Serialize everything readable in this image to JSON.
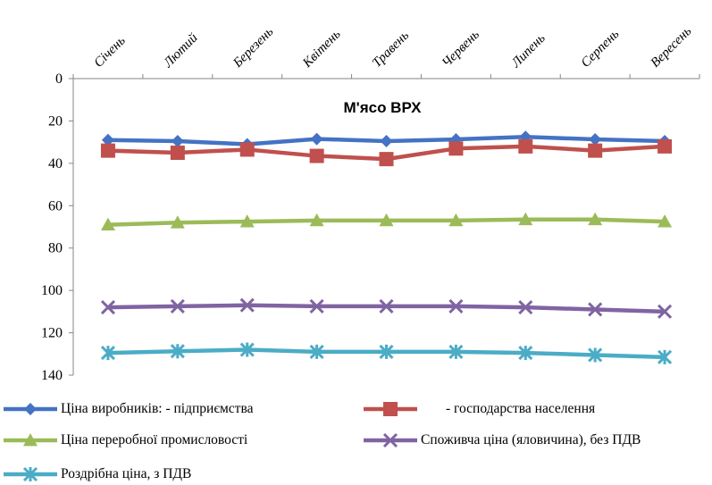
{
  "chart_data": {
    "type": "line",
    "title": "М'ясо ВРХ",
    "categories": [
      "Січень",
      "Лютий",
      "Березень",
      "Квітень",
      "Травень",
      "Червень",
      "Липень",
      "Серпень",
      "Вересень"
    ],
    "ylim": [
      0,
      140
    ],
    "y_reversed": true,
    "y_ticks": [
      0,
      20,
      40,
      60,
      80,
      100,
      120,
      140
    ],
    "x_axis_position": "top",
    "grid": false,
    "legend_position": "bottom",
    "series": [
      {
        "name": "Ціна виробників:  - підприємства",
        "color": "#4472C4",
        "marker": "diamond",
        "values": [
          29,
          29.5,
          31,
          28.5,
          29.5,
          28.7,
          27.5,
          28.7,
          29.5
        ]
      },
      {
        "name": "- господарства населення",
        "color": "#C0504D",
        "marker": "square",
        "values": [
          34,
          35,
          33.5,
          36.5,
          38,
          33,
          32,
          34,
          32
        ]
      },
      {
        "name": "Ціна переробної промисловості",
        "color": "#9BBB59",
        "marker": "triangle",
        "values": [
          69,
          68,
          67.5,
          67,
          67,
          67,
          66.5,
          66.5,
          67.5
        ]
      },
      {
        "name": "Споживча ціна  (яловичина), без ПДВ",
        "color": "#8064A2",
        "marker": "x",
        "values": [
          108,
          107.5,
          107,
          107.5,
          107.5,
          107.5,
          108,
          109,
          110
        ]
      },
      {
        "name": "Роздрібна ціна, з ПДВ",
        "color": "#4BACC6",
        "marker": "star",
        "values": [
          129.5,
          128.7,
          128,
          129,
          129,
          129,
          129.5,
          130.5,
          131.5
        ]
      }
    ]
  }
}
